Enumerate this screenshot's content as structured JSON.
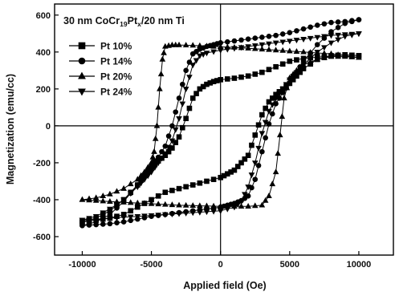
{
  "chart_data": {
    "type": "scatter",
    "title": {
      "prefix": "30 nm CoCr",
      "sub1": "19",
      "mid": "Pt",
      "sub2": "x",
      "suffix": "/20 nm Ti"
    },
    "xlabel": "Applied field (Oe)",
    "ylabel": "Magnetization (emu/cc)",
    "xlim": [
      -12000,
      12500
    ],
    "ylim": [
      -700,
      660
    ],
    "xticks": [
      -10000,
      -5000,
      0,
      5000,
      10000
    ],
    "xtick_labels": [
      "-10000",
      "-5000",
      "0",
      "5000",
      "10000"
    ],
    "yticks": [
      -600,
      -400,
      -200,
      0,
      200,
      400,
      600
    ],
    "ytick_labels": [
      "-600",
      "-400",
      "-200",
      "0",
      "200",
      "400",
      "600"
    ],
    "reference_lines": {
      "x": 0,
      "y": 0
    },
    "legend_position": "top-left",
    "series": [
      {
        "name": "Pt 10%",
        "marker": "square",
        "color": "#000000",
        "upper": [
          [
            10000,
            380
          ],
          [
            9000,
            385
          ],
          [
            8000,
            378
          ],
          [
            7000,
            372
          ],
          [
            6000,
            365
          ],
          [
            5000,
            350
          ],
          [
            4000,
            320
          ],
          [
            3000,
            290
          ],
          [
            2000,
            270
          ],
          [
            1000,
            258
          ],
          [
            0,
            250
          ],
          [
            -500,
            240
          ],
          [
            -1000,
            225
          ],
          [
            -1500,
            200
          ],
          [
            -2000,
            150
          ],
          [
            -2500,
            40
          ],
          [
            -3000,
            -60
          ],
          [
            -3500,
            -120
          ],
          [
            -4000,
            -160
          ],
          [
            -4500,
            -190
          ],
          [
            -5000,
            -230
          ],
          [
            -5500,
            -270
          ],
          [
            -6000,
            -320
          ],
          [
            -7000,
            -400
          ],
          [
            -8000,
            -460
          ],
          [
            -9000,
            -500
          ],
          [
            -10000,
            -520
          ]
        ],
        "lower": [
          [
            -10000,
            -520
          ],
          [
            -9000,
            -510
          ],
          [
            -8000,
            -500
          ],
          [
            -7000,
            -480
          ],
          [
            -6000,
            -440
          ],
          [
            -5000,
            -400
          ],
          [
            -4000,
            -360
          ],
          [
            -3000,
            -340
          ],
          [
            -2000,
            -320
          ],
          [
            -1000,
            -300
          ],
          [
            0,
            -280
          ],
          [
            500,
            -260
          ],
          [
            1000,
            -240
          ],
          [
            1500,
            -200
          ],
          [
            2000,
            -160
          ],
          [
            2500,
            -50
          ],
          [
            3000,
            60
          ],
          [
            3500,
            130
          ],
          [
            4000,
            170
          ],
          [
            4500,
            200
          ],
          [
            5000,
            230
          ],
          [
            5500,
            270
          ],
          [
            6000,
            310
          ],
          [
            7000,
            360
          ],
          [
            8000,
            380
          ],
          [
            9000,
            385
          ],
          [
            10000,
            380
          ]
        ]
      },
      {
        "name": "Pt 14%",
        "marker": "circle",
        "color": "#000000",
        "upper": [
          [
            10000,
            575
          ],
          [
            9000,
            565
          ],
          [
            8000,
            560
          ],
          [
            7000,
            545
          ],
          [
            6000,
            525
          ],
          [
            5000,
            505
          ],
          [
            4000,
            490
          ],
          [
            3000,
            480
          ],
          [
            2000,
            470
          ],
          [
            1000,
            460
          ],
          [
            0,
            450
          ],
          [
            -500,
            440
          ],
          [
            -1000,
            430
          ],
          [
            -1500,
            415
          ],
          [
            -2000,
            390
          ],
          [
            -2500,
            300
          ],
          [
            -3000,
            150
          ],
          [
            -3500,
            0
          ],
          [
            -4000,
            -110
          ],
          [
            -4500,
            -170
          ],
          [
            -5000,
            -210
          ],
          [
            -5500,
            -260
          ],
          [
            -6000,
            -320
          ],
          [
            -7000,
            -410
          ],
          [
            -8000,
            -480
          ],
          [
            -9000,
            -520
          ],
          [
            -10000,
            -540
          ]
        ],
        "lower": [
          [
            -10000,
            -540
          ],
          [
            -9000,
            -535
          ],
          [
            -8000,
            -530
          ],
          [
            -7000,
            -520
          ],
          [
            -6000,
            -505
          ],
          [
            -5000,
            -490
          ],
          [
            -4000,
            -480
          ],
          [
            -3000,
            -470
          ],
          [
            -2000,
            -460
          ],
          [
            -1000,
            -450
          ],
          [
            0,
            -440
          ],
          [
            500,
            -430
          ],
          [
            1000,
            -420
          ],
          [
            1500,
            -405
          ],
          [
            2000,
            -380
          ],
          [
            2500,
            -290
          ],
          [
            3000,
            -140
          ],
          [
            3500,
            10
          ],
          [
            4000,
            120
          ],
          [
            4500,
            180
          ],
          [
            5000,
            230
          ],
          [
            5500,
            290
          ],
          [
            6000,
            350
          ],
          [
            7000,
            440
          ],
          [
            8000,
            510
          ],
          [
            9000,
            555
          ],
          [
            10000,
            575
          ]
        ]
      },
      {
        "name": "Pt 20%",
        "marker": "triangle-up",
        "color": "#000000",
        "upper": [
          [
            10000,
            370
          ],
          [
            9000,
            380
          ],
          [
            8000,
            390
          ],
          [
            7000,
            395
          ],
          [
            6000,
            400
          ],
          [
            5000,
            405
          ],
          [
            4000,
            410
          ],
          [
            3000,
            415
          ],
          [
            2000,
            420
          ],
          [
            1000,
            425
          ],
          [
            0,
            428
          ],
          [
            -1000,
            432
          ],
          [
            -2000,
            436
          ],
          [
            -3000,
            438
          ],
          [
            -3500,
            438
          ],
          [
            -4000,
            430
          ],
          [
            -4200,
            360
          ],
          [
            -4400,
            200
          ],
          [
            -4600,
            0
          ],
          [
            -4800,
            -140
          ],
          [
            -5000,
            -200
          ],
          [
            -5500,
            -250
          ],
          [
            -6000,
            -290
          ],
          [
            -7000,
            -340
          ],
          [
            -8000,
            -370
          ],
          [
            -9000,
            -390
          ],
          [
            -10000,
            -400
          ]
        ],
        "lower": [
          [
            -10000,
            -400
          ],
          [
            -9000,
            -405
          ],
          [
            -8000,
            -410
          ],
          [
            -7000,
            -414
          ],
          [
            -6000,
            -418
          ],
          [
            -5000,
            -422
          ],
          [
            -4000,
            -426
          ],
          [
            -3000,
            -430
          ],
          [
            -2000,
            -432
          ],
          [
            -1000,
            -434
          ],
          [
            0,
            -436
          ],
          [
            1000,
            -436
          ],
          [
            2000,
            -436
          ],
          [
            3000,
            -430
          ],
          [
            3500,
            -380
          ],
          [
            4000,
            -250
          ],
          [
            4300,
            -50
          ],
          [
            4600,
            150
          ],
          [
            5000,
            260
          ],
          [
            5500,
            300
          ],
          [
            6000,
            330
          ],
          [
            7000,
            360
          ],
          [
            8000,
            375
          ],
          [
            9000,
            375
          ],
          [
            10000,
            370
          ]
        ]
      },
      {
        "name": "Pt 24%",
        "marker": "triangle-down",
        "color": "#000000",
        "upper": [
          [
            10000,
            500
          ],
          [
            9000,
            495
          ],
          [
            8000,
            490
          ],
          [
            7000,
            480
          ],
          [
            6000,
            470
          ],
          [
            5000,
            460
          ],
          [
            4000,
            450
          ],
          [
            3000,
            440
          ],
          [
            2000,
            430
          ],
          [
            1000,
            420
          ],
          [
            0,
            410
          ],
          [
            -1000,
            395
          ],
          [
            -1500,
            380
          ],
          [
            -2000,
            330
          ],
          [
            -2500,
            200
          ],
          [
            -3000,
            40
          ],
          [
            -3500,
            -80
          ],
          [
            -4000,
            -150
          ],
          [
            -4500,
            -200
          ],
          [
            -5000,
            -250
          ],
          [
            -5500,
            -290
          ],
          [
            -6000,
            -330
          ],
          [
            -7000,
            -400
          ],
          [
            -8000,
            -450
          ],
          [
            -9000,
            -490
          ],
          [
            -10000,
            -510
          ]
        ],
        "lower": [
          [
            -10000,
            -510
          ],
          [
            -9000,
            -505
          ],
          [
            -8000,
            -500
          ],
          [
            -7000,
            -495
          ],
          [
            -6000,
            -490
          ],
          [
            -5000,
            -485
          ],
          [
            -4000,
            -480
          ],
          [
            -3000,
            -475
          ],
          [
            -2000,
            -470
          ],
          [
            -1000,
            -465
          ],
          [
            0,
            -460
          ],
          [
            1000,
            -440
          ],
          [
            1500,
            -410
          ],
          [
            2000,
            -330
          ],
          [
            2500,
            -200
          ],
          [
            3000,
            -40
          ],
          [
            3500,
            80
          ],
          [
            4000,
            150
          ],
          [
            4500,
            200
          ],
          [
            5000,
            250
          ],
          [
            5500,
            290
          ],
          [
            6000,
            330
          ],
          [
            7000,
            400
          ],
          [
            8000,
            450
          ],
          [
            9000,
            485
          ],
          [
            10000,
            500
          ]
        ]
      }
    ]
  }
}
